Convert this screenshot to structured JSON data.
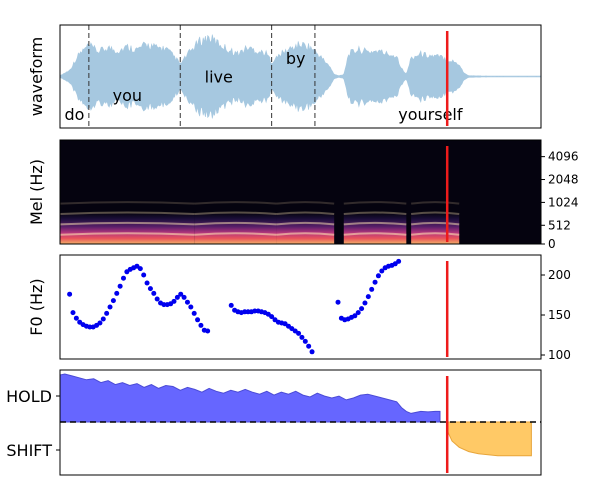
{
  "chart_data": [
    {
      "type": "area",
      "ylabel": "waveform",
      "words": [
        {
          "text": "do",
          "label_x": 0.03,
          "label_y": -0.8,
          "start": 0.0,
          "end": 0.06
        },
        {
          "text": "you",
          "label_x": 0.14,
          "label_y": -0.4,
          "start": 0.06,
          "end": 0.25
        },
        {
          "text": "live",
          "label_x": 0.33,
          "label_y": 0.0,
          "start": 0.25,
          "end": 0.44
        },
        {
          "text": "by",
          "label_x": 0.49,
          "label_y": 0.4,
          "start": 0.44,
          "end": 0.53
        },
        {
          "text": "yourself",
          "label_x": 0.77,
          "label_y": -0.8,
          "start": 0.53,
          "end": null
        }
      ],
      "xlim": [
        0,
        1.0
      ],
      "ylim": [
        -1.1,
        1.1
      ],
      "envelope": [
        [
          0.0,
          0.02
        ],
        [
          0.02,
          0.15
        ],
        [
          0.04,
          0.55
        ],
        [
          0.06,
          0.75
        ],
        [
          0.08,
          0.6
        ],
        [
          0.1,
          0.7
        ],
        [
          0.12,
          0.62
        ],
        [
          0.14,
          0.72
        ],
        [
          0.16,
          0.65
        ],
        [
          0.18,
          0.78
        ],
        [
          0.2,
          0.7
        ],
        [
          0.22,
          0.68
        ],
        [
          0.24,
          0.45
        ],
        [
          0.25,
          0.3
        ],
        [
          0.27,
          0.6
        ],
        [
          0.29,
          0.85
        ],
        [
          0.31,
          0.95
        ],
        [
          0.33,
          0.8
        ],
        [
          0.35,
          0.65
        ],
        [
          0.37,
          0.55
        ],
        [
          0.39,
          0.7
        ],
        [
          0.41,
          0.62
        ],
        [
          0.43,
          0.55
        ],
        [
          0.44,
          0.35
        ],
        [
          0.46,
          0.55
        ],
        [
          0.48,
          0.68
        ],
        [
          0.5,
          0.78
        ],
        [
          0.52,
          0.72
        ],
        [
          0.54,
          0.5
        ],
        [
          0.56,
          0.25
        ],
        [
          0.57,
          0.05
        ],
        [
          0.58,
          0.02
        ],
        [
          0.59,
          0.05
        ],
        [
          0.6,
          0.55
        ],
        [
          0.62,
          0.65
        ],
        [
          0.64,
          0.6
        ],
        [
          0.66,
          0.62
        ],
        [
          0.68,
          0.55
        ],
        [
          0.7,
          0.5
        ],
        [
          0.71,
          0.2
        ],
        [
          0.72,
          0.05
        ],
        [
          0.73,
          0.45
        ],
        [
          0.75,
          0.55
        ],
        [
          0.77,
          0.5
        ],
        [
          0.79,
          0.48
        ],
        [
          0.81,
          0.4
        ],
        [
          0.83,
          0.3
        ],
        [
          0.84,
          0.08
        ],
        [
          0.85,
          0.02
        ],
        [
          0.9,
          0.01
        ],
        [
          1.0,
          0.01
        ]
      ],
      "cursor_x": 0.805
    },
    {
      "type": "heatmap",
      "ylabel": "Mel (Hz)",
      "yticks": [
        "0",
        "512",
        "1024",
        "2048",
        "4096"
      ],
      "bands": [
        {
          "level": 0.05,
          "intensity": 0.95
        },
        {
          "level": 0.15,
          "intensity": 0.85
        },
        {
          "level": 0.25,
          "intensity": 0.55
        },
        {
          "level": 0.35,
          "intensity": 0.3
        }
      ],
      "active_segments": [
        [
          0.0,
          0.28
        ],
        [
          0.28,
          0.45
        ],
        [
          0.45,
          0.57
        ],
        [
          0.59,
          0.72
        ],
        [
          0.73,
          0.83
        ]
      ],
      "cursor_x": 0.805
    },
    {
      "type": "scatter",
      "ylabel": "F0 (Hz)",
      "yticks": [
        100,
        150,
        200
      ],
      "ylim": [
        95,
        225
      ],
      "points": [
        [
          0.02,
          176
        ],
        [
          0.027,
          153
        ],
        [
          0.034,
          146
        ],
        [
          0.041,
          141
        ],
        [
          0.048,
          138
        ],
        [
          0.055,
          136
        ],
        [
          0.062,
          135
        ],
        [
          0.069,
          135
        ],
        [
          0.076,
          137
        ],
        [
          0.083,
          140
        ],
        [
          0.09,
          145
        ],
        [
          0.097,
          152
        ],
        [
          0.104,
          160
        ],
        [
          0.111,
          168
        ],
        [
          0.118,
          177
        ],
        [
          0.125,
          186
        ],
        [
          0.132,
          196
        ],
        [
          0.139,
          204
        ],
        [
          0.146,
          207
        ],
        [
          0.153,
          209
        ],
        [
          0.16,
          211
        ],
        [
          0.167,
          208
        ],
        [
          0.174,
          200
        ],
        [
          0.181,
          190
        ],
        [
          0.188,
          183
        ],
        [
          0.195,
          177
        ],
        [
          0.202,
          170
        ],
        [
          0.209,
          165
        ],
        [
          0.216,
          163
        ],
        [
          0.223,
          163
        ],
        [
          0.23,
          164
        ],
        [
          0.237,
          167
        ],
        [
          0.244,
          172
        ],
        [
          0.251,
          176
        ],
        [
          0.258,
          172
        ],
        [
          0.265,
          166
        ],
        [
          0.272,
          160
        ],
        [
          0.279,
          152
        ],
        [
          0.286,
          144
        ],
        [
          0.293,
          137
        ],
        [
          0.3,
          131
        ],
        [
          0.307,
          130
        ],
        [
          0.356,
          162
        ],
        [
          0.363,
          156
        ],
        [
          0.37,
          154
        ],
        [
          0.377,
          153
        ],
        [
          0.384,
          154
        ],
        [
          0.391,
          154
        ],
        [
          0.398,
          154
        ],
        [
          0.405,
          155
        ],
        [
          0.412,
          155
        ],
        [
          0.419,
          154
        ],
        [
          0.426,
          153
        ],
        [
          0.433,
          151
        ],
        [
          0.44,
          148
        ],
        [
          0.447,
          144
        ],
        [
          0.454,
          141
        ],
        [
          0.461,
          140
        ],
        [
          0.468,
          139
        ],
        [
          0.475,
          136
        ],
        [
          0.482,
          133
        ],
        [
          0.489,
          130
        ],
        [
          0.496,
          127
        ],
        [
          0.503,
          122
        ],
        [
          0.51,
          117
        ],
        [
          0.517,
          111
        ],
        [
          0.524,
          104
        ],
        [
          0.578,
          166
        ],
        [
          0.585,
          146
        ],
        [
          0.592,
          144
        ],
        [
          0.599,
          145
        ],
        [
          0.606,
          147
        ],
        [
          0.613,
          149
        ],
        [
          0.62,
          153
        ],
        [
          0.627,
          158
        ],
        [
          0.634,
          165
        ],
        [
          0.641,
          173
        ],
        [
          0.648,
          182
        ],
        [
          0.655,
          191
        ],
        [
          0.662,
          199
        ],
        [
          0.669,
          205
        ],
        [
          0.676,
          209
        ],
        [
          0.683,
          211
        ],
        [
          0.69,
          212
        ],
        [
          0.697,
          214
        ],
        [
          0.704,
          217
        ]
      ],
      "cursor_x": 0.805
    },
    {
      "type": "area",
      "yticks": [
        "HOLD",
        "SHIFT"
      ],
      "baseline": 0,
      "ylim": [
        -1.0,
        1.0
      ],
      "hold_series": [
        [
          0.0,
          0.98
        ],
        [
          0.01,
          1.0
        ],
        [
          0.025,
          0.96
        ],
        [
          0.04,
          0.92
        ],
        [
          0.055,
          0.88
        ],
        [
          0.07,
          0.9
        ],
        [
          0.085,
          0.82
        ],
        [
          0.1,
          0.86
        ],
        [
          0.115,
          0.78
        ],
        [
          0.13,
          0.82
        ],
        [
          0.145,
          0.76
        ],
        [
          0.16,
          0.8
        ],
        [
          0.175,
          0.72
        ],
        [
          0.19,
          0.78
        ],
        [
          0.205,
          0.7
        ],
        [
          0.22,
          0.76
        ],
        [
          0.235,
          0.74
        ],
        [
          0.25,
          0.66
        ],
        [
          0.265,
          0.72
        ],
        [
          0.28,
          0.68
        ],
        [
          0.295,
          0.62
        ],
        [
          0.31,
          0.7
        ],
        [
          0.325,
          0.64
        ],
        [
          0.34,
          0.6
        ],
        [
          0.355,
          0.66
        ],
        [
          0.37,
          0.62
        ],
        [
          0.385,
          0.68
        ],
        [
          0.4,
          0.62
        ],
        [
          0.415,
          0.58
        ],
        [
          0.43,
          0.64
        ],
        [
          0.445,
          0.56
        ],
        [
          0.46,
          0.62
        ],
        [
          0.475,
          0.58
        ],
        [
          0.49,
          0.64
        ],
        [
          0.505,
          0.56
        ],
        [
          0.52,
          0.52
        ],
        [
          0.535,
          0.6
        ],
        [
          0.55,
          0.54
        ],
        [
          0.565,
          0.5
        ],
        [
          0.58,
          0.54
        ],
        [
          0.595,
          0.46
        ],
        [
          0.61,
          0.5
        ],
        [
          0.625,
          0.56
        ],
        [
          0.64,
          0.58
        ],
        [
          0.655,
          0.54
        ],
        [
          0.67,
          0.5
        ],
        [
          0.685,
          0.46
        ],
        [
          0.7,
          0.42
        ],
        [
          0.71,
          0.3
        ],
        [
          0.72,
          0.22
        ],
        [
          0.73,
          0.18
        ],
        [
          0.74,
          0.2
        ],
        [
          0.75,
          0.22
        ],
        [
          0.765,
          0.21
        ],
        [
          0.78,
          0.22
        ],
        [
          0.79,
          0.22
        ]
      ],
      "shift_series": [
        [
          0.805,
          -0.08
        ],
        [
          0.815,
          -0.18
        ],
        [
          0.83,
          -0.24
        ],
        [
          0.85,
          -0.28
        ],
        [
          0.87,
          -0.3
        ],
        [
          0.89,
          -0.31
        ],
        [
          0.91,
          -0.32
        ],
        [
          0.94,
          -0.32
        ],
        [
          0.98,
          -0.32
        ]
      ],
      "cursor_x": 0.805
    }
  ],
  "colors": {
    "waveform": "#a6c8e0",
    "cursor": "#ee1b1b",
    "word_boundary": "#333333",
    "f0_points": "#0000ee",
    "hold_fill": "#6666ff",
    "hold_line": "#4b4bd6",
    "shift_fill": "#ffc966",
    "shift_line": "#e8a53a",
    "mel_background": "#05030f"
  }
}
